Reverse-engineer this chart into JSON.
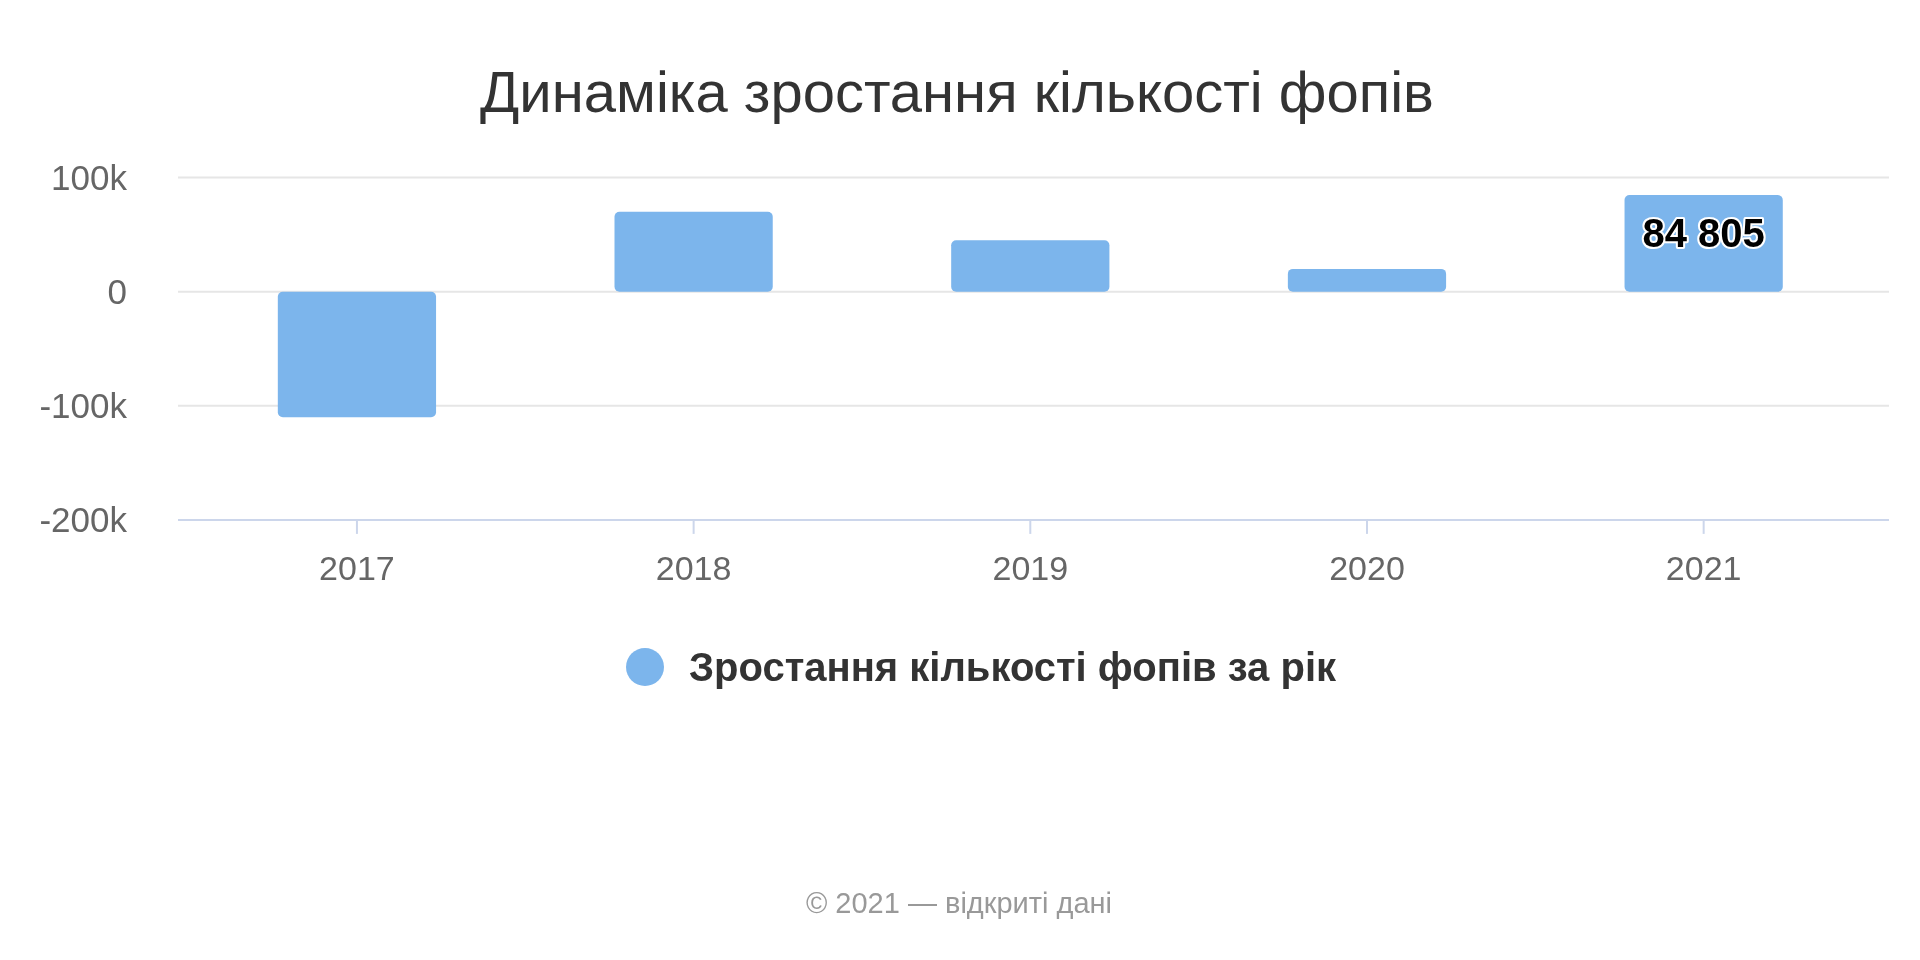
{
  "chart_data": {
    "type": "bar",
    "title": "Динаміка зростання кількості фопів",
    "categories": [
      "2017",
      "2018",
      "2019",
      "2020",
      "2021"
    ],
    "series": [
      {
        "name": "Зростання кількості фопів за рік",
        "color": "#7cb5ec",
        "values": [
          -110000,
          70000,
          45000,
          20000,
          84805
        ],
        "value_labels": [
          null,
          null,
          null,
          null,
          "84 805"
        ]
      }
    ],
    "ylim": [
      -200000,
      100000
    ],
    "yticks": [
      {
        "value": -200000,
        "label": "-200k"
      },
      {
        "value": -100000,
        "label": "-100k"
      },
      {
        "value": 0,
        "label": "0"
      },
      {
        "value": 100000,
        "label": "100k"
      }
    ],
    "grid": "y",
    "legend": "bottom",
    "annotations": [
      "© 2021 — відкриті дані"
    ]
  }
}
